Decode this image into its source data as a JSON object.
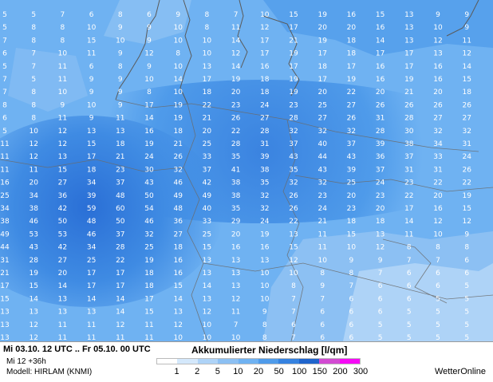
{
  "map": {
    "title": "Mi 03.10. 12 UTC .. Fr 05.10. 00 UTC",
    "run": "Mi 12 +36h",
    "model": "Modell: HIRLAM (KNMI)",
    "legend_title": "Akkumulierter Niederschlag [l/qm]",
    "brand": "WetterOnline",
    "legend_ticks": [
      "1",
      "2",
      "5",
      "10",
      "20",
      "50",
      "100",
      "150",
      "200",
      "300"
    ],
    "legend_colors": [
      "#ffffff",
      "#d4e8fb",
      "#aed3f7",
      "#8cc0f3",
      "#6fb2f2",
      "#4f9bea",
      "#3582e0",
      "#1f64cc",
      "#d24bd2",
      "#f60af6"
    ],
    "values": [
      [
        "5",
        "5",
        "7",
        "6",
        "8",
        "6",
        "9",
        "8",
        "7",
        "10",
        "15",
        "19",
        "16",
        "15",
        "13",
        "9",
        "9"
      ],
      [
        "5",
        "8",
        "8",
        "10",
        "9",
        "9",
        "10",
        "8",
        "11",
        "12",
        "17",
        "20",
        "20",
        "16",
        "13",
        "10",
        "9"
      ],
      [
        "7",
        "8",
        "8",
        "15",
        "10",
        "9",
        "10",
        "10",
        "14",
        "17",
        "21",
        "19",
        "18",
        "14",
        "13",
        "12",
        "11"
      ],
      [
        "6",
        "7",
        "10",
        "11",
        "9",
        "12",
        "8",
        "10",
        "12",
        "17",
        "19",
        "17",
        "18",
        "17",
        "17",
        "13",
        "12"
      ],
      [
        "5",
        "7",
        "11",
        "6",
        "8",
        "9",
        "10",
        "13",
        "14",
        "16",
        "17",
        "18",
        "17",
        "16",
        "17",
        "16",
        "14"
      ],
      [
        "7",
        "5",
        "11",
        "9",
        "9",
        "10",
        "14",
        "17",
        "19",
        "18",
        "19",
        "17",
        "19",
        "16",
        "19",
        "16",
        "15"
      ],
      [
        "7",
        "8",
        "10",
        "9",
        "9",
        "8",
        "10",
        "18",
        "20",
        "18",
        "19",
        "20",
        "22",
        "20",
        "21",
        "20",
        "18"
      ],
      [
        "8",
        "8",
        "9",
        "10",
        "9",
        "17",
        "19",
        "22",
        "23",
        "24",
        "23",
        "25",
        "27",
        "26",
        "26",
        "26",
        "26"
      ],
      [
        "6",
        "8",
        "11",
        "9",
        "11",
        "14",
        "19",
        "21",
        "26",
        "27",
        "28",
        "27",
        "26",
        "31",
        "28",
        "27",
        "27"
      ],
      [
        "5",
        "10",
        "12",
        "13",
        "13",
        "16",
        "18",
        "20",
        "22",
        "28",
        "32",
        "32",
        "32",
        "28",
        "30",
        "32",
        "32"
      ],
      [
        "11",
        "12",
        "12",
        "15",
        "18",
        "19",
        "21",
        "25",
        "28",
        "31",
        "37",
        "40",
        "37",
        "39",
        "38",
        "34",
        "31"
      ],
      [
        "11",
        "12",
        "13",
        "17",
        "21",
        "24",
        "26",
        "33",
        "35",
        "39",
        "43",
        "44",
        "43",
        "36",
        "37",
        "33",
        "24"
      ],
      [
        "11",
        "11",
        "15",
        "18",
        "23",
        "30",
        "32",
        "37",
        "41",
        "38",
        "35",
        "43",
        "39",
        "37",
        "31",
        "31",
        "26"
      ],
      [
        "16",
        "20",
        "27",
        "34",
        "37",
        "43",
        "46",
        "42",
        "38",
        "35",
        "32",
        "32",
        "25",
        "24",
        "23",
        "22",
        "22"
      ],
      [
        "25",
        "34",
        "36",
        "39",
        "48",
        "50",
        "49",
        "49",
        "38",
        "32",
        "26",
        "23",
        "20",
        "23",
        "22",
        "20",
        "19"
      ],
      [
        "34",
        "38",
        "42",
        "59",
        "60",
        "54",
        "48",
        "40",
        "35",
        "32",
        "26",
        "24",
        "23",
        "20",
        "17",
        "16",
        "15"
      ],
      [
        "38",
        "46",
        "50",
        "48",
        "50",
        "46",
        "36",
        "33",
        "29",
        "24",
        "22",
        "21",
        "18",
        "18",
        "14",
        "12",
        "12"
      ],
      [
        "49",
        "53",
        "53",
        "46",
        "37",
        "32",
        "27",
        "25",
        "20",
        "19",
        "13",
        "11",
        "15",
        "13",
        "11",
        "10",
        "9"
      ],
      [
        "44",
        "43",
        "42",
        "34",
        "28",
        "25",
        "18",
        "15",
        "16",
        "16",
        "15",
        "11",
        "10",
        "12",
        "8",
        "8",
        "8"
      ],
      [
        "31",
        "28",
        "27",
        "25",
        "22",
        "19",
        "16",
        "13",
        "13",
        "13",
        "12",
        "10",
        "9",
        "9",
        "7",
        "7",
        "6"
      ],
      [
        "21",
        "19",
        "20",
        "17",
        "17",
        "18",
        "16",
        "13",
        "13",
        "10",
        "10",
        "8",
        "8",
        "7",
        "6",
        "6",
        "6"
      ],
      [
        "17",
        "15",
        "14",
        "17",
        "17",
        "18",
        "15",
        "14",
        "13",
        "10",
        "8",
        "9",
        "7",
        "6",
        "6",
        "6",
        "5"
      ],
      [
        "15",
        "14",
        "13",
        "14",
        "14",
        "17",
        "14",
        "13",
        "12",
        "10",
        "7",
        "7",
        "6",
        "6",
        "6",
        "5",
        "5"
      ],
      [
        "13",
        "13",
        "13",
        "13",
        "14",
        "15",
        "13",
        "12",
        "11",
        "9",
        "7",
        "6",
        "6",
        "6",
        "5",
        "5",
        "5"
      ],
      [
        "13",
        "12",
        "11",
        "11",
        "12",
        "11",
        "12",
        "10",
        "7",
        "8",
        "6",
        "6",
        "6",
        "5",
        "5",
        "5",
        "5"
      ],
      [
        "13",
        "12",
        "11",
        "11",
        "11",
        "11",
        "10",
        "10",
        "10",
        "8",
        "7",
        "6",
        "6",
        "5",
        "5",
        "5",
        "5"
      ]
    ]
  }
}
